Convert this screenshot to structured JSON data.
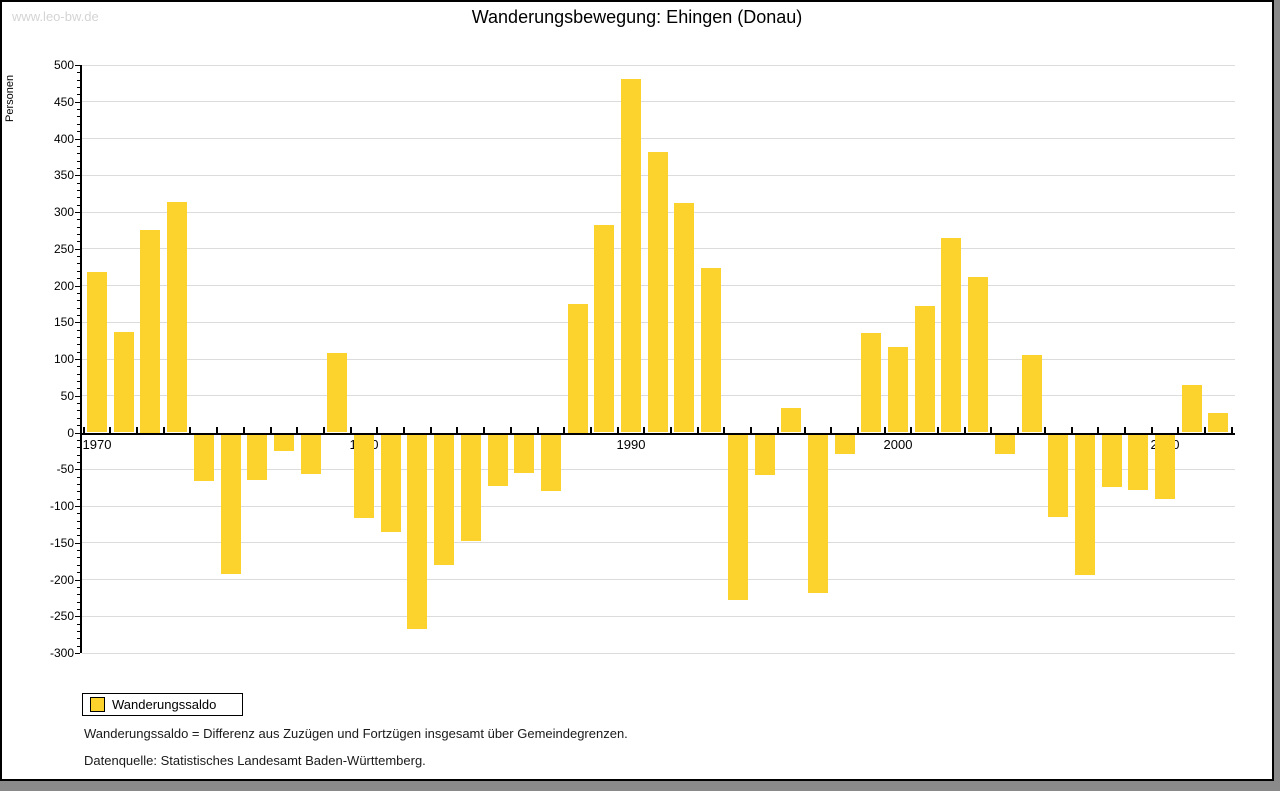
{
  "watermark": "www.leo-bw.de",
  "header": {
    "title": "Wanderungsbewegung: Ehingen (Donau)"
  },
  "chart_data": {
    "type": "bar",
    "title": "Wanderungsbewegung: Ehingen (Donau)",
    "ylabel": "Personen",
    "xlabel": "",
    "ylim": [
      -300,
      500
    ],
    "ytick_step": 50,
    "ytick_minor_step": 10,
    "ytick_labels": [
      "500",
      "450",
      "400",
      "350",
      "300",
      "250",
      "200",
      "150",
      "100",
      "50",
      "0",
      "-50",
      "-100",
      "-150",
      "-200",
      "-250",
      "-300"
    ],
    "xtick_labels": [
      "1970",
      "1980",
      "1990",
      "2000",
      "2010"
    ],
    "grid": "horizontal-only",
    "legend_position": "bottom-left",
    "series": [
      {
        "name": "Wanderungssaldo",
        "color": "#fcd32d",
        "years": [
          1970,
          1971,
          1972,
          1973,
          1974,
          1975,
          1976,
          1977,
          1978,
          1979,
          1980,
          1981,
          1982,
          1983,
          1984,
          1985,
          1986,
          1987,
          1988,
          1989,
          1990,
          1991,
          1992,
          1993,
          1994,
          1995,
          1996,
          1997,
          1998,
          1999,
          2000,
          2001,
          2002,
          2003,
          2004,
          2005,
          2006,
          2007,
          2008,
          2009,
          2010,
          2011,
          2012
        ],
        "values": [
          218,
          137,
          275,
          313,
          -63,
          -190,
          -62,
          -22,
          -54,
          108,
          -113,
          -133,
          -265,
          -177,
          -145,
          -70,
          -52,
          -77,
          175,
          282,
          481,
          381,
          312,
          224,
          -225,
          -55,
          33,
          -215,
          -27,
          136,
          116,
          172,
          264,
          211,
          -26,
          105,
          -112,
          -191,
          -72,
          -76,
          -88,
          64,
          27
        ]
      }
    ]
  },
  "legend": {
    "swatch_color": "#fcd32d",
    "label": "Wanderungssaldo"
  },
  "footnotes": {
    "definition": "Wanderungssaldo = Differenz aus Zuzügen und Fortzügen insgesamt über Gemeindegrenzen.",
    "source": "Datenquelle: Statistisches Landesamt Baden-Württemberg."
  },
  "colors": {
    "bar": "#fcd32d",
    "grid": "#dcdcdc",
    "axis": "#000000",
    "watermark": "#d4d4d4",
    "window_shadow": "#8a8a8a"
  }
}
